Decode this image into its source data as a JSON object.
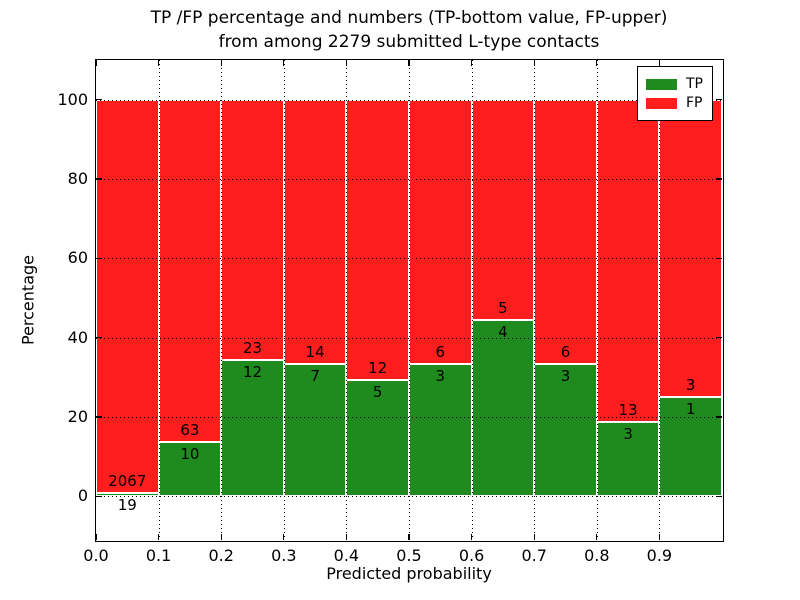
{
  "title": {
    "line1": "TP /FP percentage and numbers (TP-bottom value, FP-upper)",
    "line2": "from among 2279 submitted L-type contacts"
  },
  "chart_data": {
    "type": "bar",
    "stacked": true,
    "normalized_to": 100,
    "title": "TP /FP percentage and numbers (TP-bottom value, FP-upper) from among 2279 submitted L-type contacts",
    "xlabel": "Predicted probability",
    "ylabel": "Percentage",
    "xlim": [
      0,
      1
    ],
    "ylim": [
      -11,
      110
    ],
    "bins": [
      0.0,
      0.1,
      0.2,
      0.3,
      0.4,
      0.5,
      0.6,
      0.7,
      0.8,
      0.9
    ],
    "bin_width": 0.1,
    "xticks": [
      0.0,
      0.1,
      0.2,
      0.3,
      0.4,
      0.5,
      0.6,
      0.7,
      0.8,
      0.9
    ],
    "yticks": [
      0,
      20,
      40,
      60,
      80,
      100
    ],
    "grid": "dotted, both axes, drawn over bars",
    "series": [
      {
        "name": "TP",
        "color": "#1f8b1f",
        "values": [
          19,
          10,
          12,
          7,
          5,
          3,
          4,
          3,
          3,
          1
        ]
      },
      {
        "name": "FP",
        "color": "#ff1e1e",
        "values": [
          2067,
          63,
          23,
          14,
          12,
          6,
          5,
          6,
          13,
          3
        ]
      }
    ],
    "tp_percent": [
      0.91,
      13.7,
      34.29,
      33.33,
      29.41,
      33.33,
      44.44,
      33.33,
      18.75,
      25.0
    ],
    "total_contacts": 2279,
    "bar_edge_color": "#ffffff",
    "legend": {
      "position": "upper right",
      "entries": [
        {
          "label": "TP",
          "color": "#1f8b1f"
        },
        {
          "label": "FP",
          "color": "#ff1e1e"
        }
      ]
    }
  }
}
